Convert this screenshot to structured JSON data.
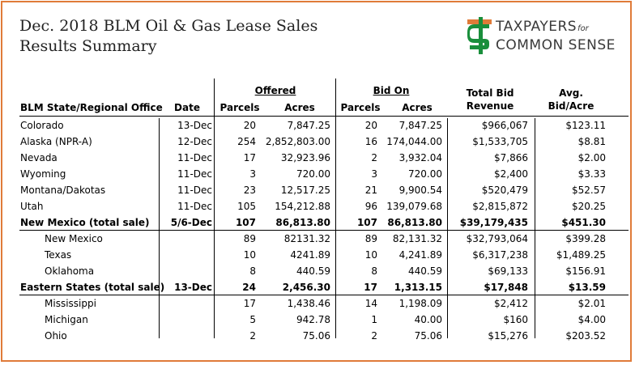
{
  "title": {
    "line1": "Dec. 2018 BLM Oil & Gas Lease Sales",
    "line2": "Results Summary"
  },
  "logo": {
    "line1": "TAXPAYERS",
    "line1_small": "for",
    "line2": "COMMON SENSE",
    "mark_color": "#1a8f3c",
    "accent_color": "#E07B39"
  },
  "headers": {
    "offered": "Offered",
    "bid_on": "Bid On",
    "total_bid_1": "Total Bid",
    "total_bid_2": "Revenue",
    "avg_1": "Avg.",
    "avg_2": "Bid/Acre",
    "office": "BLM State/Regional Office",
    "date": "Date",
    "parcels_offered": "Parcels",
    "acres_offered": "Acres",
    "parcels_bid": "Parcels",
    "acres_bid": "Acres"
  },
  "rows": [
    {
      "office": "Colorado",
      "date": "13-Dec",
      "p_off": "20",
      "a_off": "7,847.25",
      "p_bid": "20",
      "a_bid": "7,847.25",
      "rev": "$966,067",
      "avg": "$123.11"
    },
    {
      "office": "Alaska (NPR-A)",
      "date": "12-Dec",
      "p_off": "254",
      "a_off": "2,852,803.00",
      "p_bid": "16",
      "a_bid": "174,044.00",
      "rev": "$1,533,705",
      "avg": "$8.81"
    },
    {
      "office": "Nevada",
      "date": "11-Dec",
      "p_off": "17",
      "a_off": "32,923.96",
      "p_bid": "2",
      "a_bid": "3,932.04",
      "rev": "$7,866",
      "avg": "$2.00"
    },
    {
      "office": "Wyoming",
      "date": "11-Dec",
      "p_off": "3",
      "a_off": "720.00",
      "p_bid": "3",
      "a_bid": "720.00",
      "rev": "$2,400",
      "avg": "$3.33"
    },
    {
      "office": "Montana/Dakotas",
      "date": "11-Dec",
      "p_off": "23",
      "a_off": "12,517.25",
      "p_bid": "21",
      "a_bid": "9,900.54",
      "rev": "$520,479",
      "avg": "$52.57"
    },
    {
      "office": "Utah",
      "date": "11-Dec",
      "p_off": "105",
      "a_off": "154,212.88",
      "p_bid": "96",
      "a_bid": "139,079.68",
      "rev": "$2,815,872",
      "avg": "$20.25"
    },
    {
      "office": "New Mexico (total sale)",
      "date": "5/6-Dec",
      "p_off": "107",
      "a_off": "86,813.80",
      "p_bid": "107",
      "a_bid": "86,813.80",
      "rev": "$39,179,435",
      "avg": "$451.30"
    },
    {
      "office": "New Mexico",
      "date": "",
      "p_off": "89",
      "a_off": "82131.32",
      "p_bid": "89",
      "a_bid": "82,131.32",
      "rev": "$32,793,064",
      "avg": "$399.28"
    },
    {
      "office": "Texas",
      "date": "",
      "p_off": "10",
      "a_off": "4241.89",
      "p_bid": "10",
      "a_bid": "4,241.89",
      "rev": "$6,317,238",
      "avg": "$1,489.25"
    },
    {
      "office": "Oklahoma",
      "date": "",
      "p_off": "8",
      "a_off": "440.59",
      "p_bid": "8",
      "a_bid": "440.59",
      "rev": "$69,133",
      "avg": "$156.91"
    },
    {
      "office": "Eastern States (total sale)",
      "date": "13-Dec",
      "p_off": "24",
      "a_off": "2,456.30",
      "p_bid": "17",
      "a_bid": "1,313.15",
      "rev": "$17,848",
      "avg": "$13.59"
    },
    {
      "office": "Mississippi",
      "date": "",
      "p_off": "17",
      "a_off": "1,438.46",
      "p_bid": "14",
      "a_bid": "1,198.09",
      "rev": "$2,412",
      "avg": "$2.01"
    },
    {
      "office": "Michigan",
      "date": "",
      "p_off": "5",
      "a_off": "942.78",
      "p_bid": "1",
      "a_bid": "40.00",
      "rev": "$160",
      "avg": "$4.00"
    },
    {
      "office": "Ohio",
      "date": "",
      "p_off": "2",
      "a_off": "75.06",
      "p_bid": "2",
      "a_bid": "75.06",
      "rev": "$15,276",
      "avg": "$203.52"
    }
  ]
}
